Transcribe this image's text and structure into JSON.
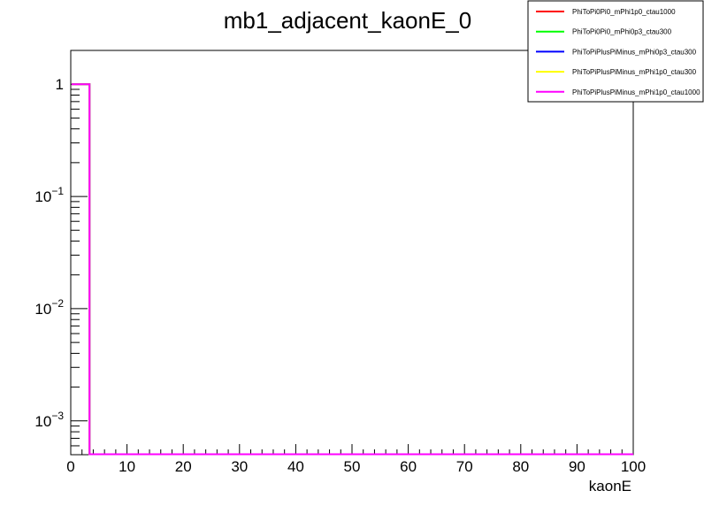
{
  "chart_data": {
    "type": "histogram",
    "title": "mb1_adjacent_kaonE_0",
    "xlabel": "kaonE",
    "ylabel": "",
    "xlim": [
      0,
      100
    ],
    "ylim": [
      0.0005,
      2
    ],
    "y_log_scale": true,
    "x_ticks": [
      "0",
      "10",
      "20",
      "30",
      "40",
      "50",
      "60",
      "70",
      "80",
      "90",
      "100"
    ],
    "y_ticks": [
      {
        "base": "10",
        "exp": "",
        "value": 1,
        "text": "1"
      },
      {
        "base": "10",
        "exp": "−1",
        "value": 0.1
      },
      {
        "base": "10",
        "exp": "−2",
        "value": 0.01
      },
      {
        "base": "10",
        "exp": "−3",
        "value": 0.001
      }
    ],
    "grid": false,
    "legend_position": "top-right",
    "series": [
      {
        "name": "PhiToPi0Pi0_mPhi1p0_ctau1000",
        "color": "#ff0000",
        "bins": [
          {
            "x0": 0,
            "x1": 3.33,
            "y": 1
          }
        ]
      },
      {
        "name": "PhiToPi0Pi0_mPhi0p3_ctau300",
        "color": "#00ff00",
        "bins": [
          {
            "x0": 0,
            "x1": 3.33,
            "y": 1
          }
        ]
      },
      {
        "name": "PhiToPiPlusPiMinus_mPhi0p3_ctau300",
        "color": "#0000ff",
        "bins": [
          {
            "x0": 0,
            "x1": 3.33,
            "y": 1
          }
        ]
      },
      {
        "name": "PhiToPiPlusPiMinus_mPhi1p0_ctau300",
        "color": "#ffff00",
        "bins": [
          {
            "x0": 0,
            "x1": 3.33,
            "y": 1
          }
        ]
      },
      {
        "name": "PhiToPiPlusPiMinus_mPhi1p0_ctau1000",
        "color": "#ff00ff",
        "bins": [
          {
            "x0": 0,
            "x1": 3.33,
            "y": 1
          }
        ]
      }
    ]
  }
}
